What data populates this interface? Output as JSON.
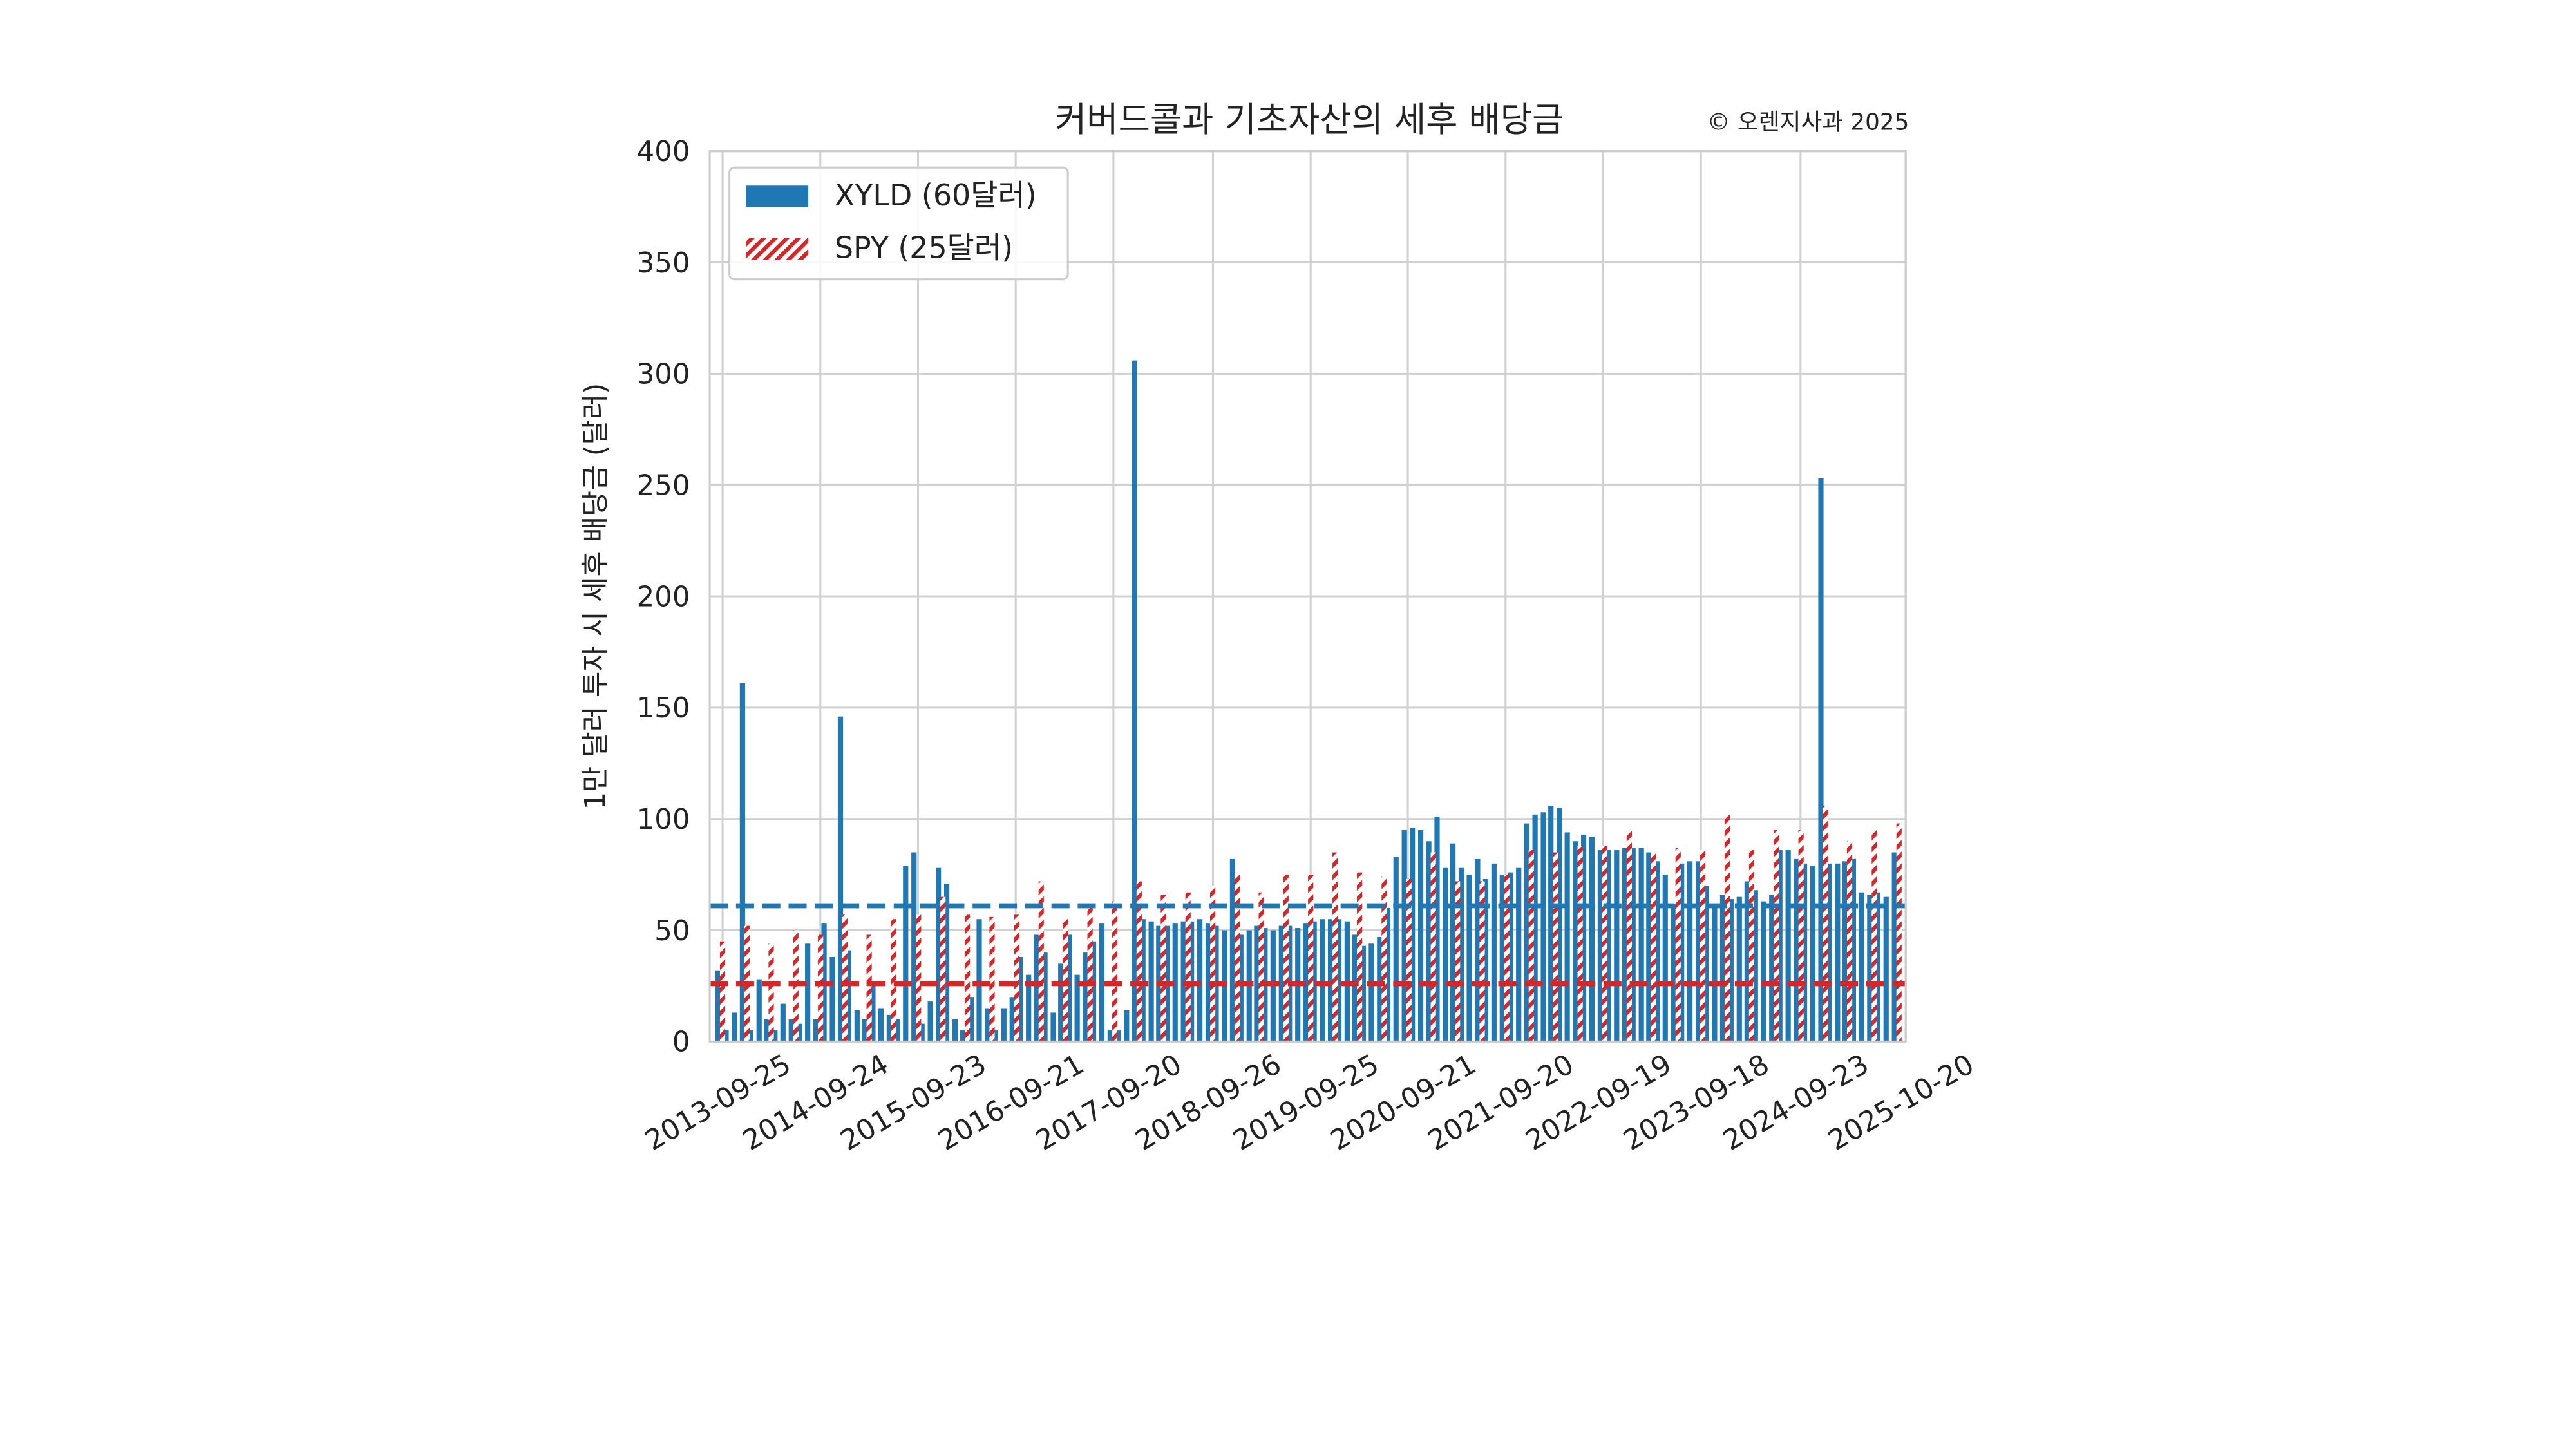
{
  "chart_data": {
    "type": "bar",
    "title": "커버드콜과 기초자산의 세후 배당금",
    "annotation": "© 오렌지사과 2025",
    "ylabel": "1만 달러 투자 시 세후 배당금 (달러)",
    "xlim": [
      "2013-08-08",
      "2025-10-20"
    ],
    "xticks": [
      "2013-09-25",
      "2014-09-24",
      "2015-09-23",
      "2016-09-21",
      "2017-09-20",
      "2018-09-26",
      "2019-09-25",
      "2020-09-21",
      "2021-09-20",
      "2022-09-19",
      "2023-09-18",
      "2024-09-23",
      "2025-10-20"
    ],
    "ylim": [
      0,
      400
    ],
    "yticks": [
      0,
      50,
      100,
      150,
      200,
      250,
      300,
      350,
      400
    ],
    "grid": true,
    "legend": "upper left",
    "series": [
      {
        "name": "XYLD (60달러)",
        "color": "#1f77b4",
        "mean": 61,
        "x": [
          "2013-09-08",
          "2013-10-08",
          "2013-11-08",
          "2013-12-08",
          "2014-01-08",
          "2014-02-08",
          "2014-03-08",
          "2014-04-08",
          "2014-05-08",
          "2014-06-08",
          "2014-07-08",
          "2014-08-08",
          "2014-09-08",
          "2014-10-08",
          "2014-11-08",
          "2014-12-08",
          "2015-01-08",
          "2015-02-08",
          "2015-03-08",
          "2015-04-08",
          "2015-05-08",
          "2015-06-08",
          "2015-07-08",
          "2015-08-08",
          "2015-09-08",
          "2015-10-08",
          "2015-11-08",
          "2015-12-08",
          "2016-01-08",
          "2016-02-08",
          "2016-03-08",
          "2016-04-08",
          "2016-05-08",
          "2016-06-08",
          "2016-07-08",
          "2016-08-08",
          "2016-09-08",
          "2016-10-08",
          "2016-11-08",
          "2016-12-08",
          "2017-01-08",
          "2017-02-08",
          "2017-03-08",
          "2017-04-08",
          "2017-05-08",
          "2017-06-08",
          "2017-07-08",
          "2017-08-08",
          "2017-09-08",
          "2017-10-08",
          "2017-11-08",
          "2017-12-08",
          "2018-01-08",
          "2018-02-08",
          "2018-03-08",
          "2018-04-08",
          "2018-05-08",
          "2018-06-08",
          "2018-07-08",
          "2018-08-08",
          "2018-09-08",
          "2018-10-08",
          "2018-11-08",
          "2018-12-08",
          "2019-01-08",
          "2019-02-08",
          "2019-03-08",
          "2019-04-08",
          "2019-05-08",
          "2019-06-08",
          "2019-07-08",
          "2019-08-08",
          "2019-09-08",
          "2019-10-08",
          "2019-11-08",
          "2019-12-08",
          "2020-01-08",
          "2020-02-08",
          "2020-03-08",
          "2020-04-08",
          "2020-05-08",
          "2020-06-08",
          "2020-07-08",
          "2020-08-08",
          "2020-09-08",
          "2020-10-08",
          "2020-11-08",
          "2020-12-08",
          "2021-01-08",
          "2021-02-08",
          "2021-03-08",
          "2021-04-08",
          "2021-05-08",
          "2021-06-08",
          "2021-07-08",
          "2021-08-08",
          "2021-09-08",
          "2021-10-08",
          "2021-11-08",
          "2021-12-08",
          "2022-01-08",
          "2022-02-08",
          "2022-03-08",
          "2022-04-08",
          "2022-05-08",
          "2022-06-08",
          "2022-07-08",
          "2022-08-08",
          "2022-09-08",
          "2022-10-08",
          "2022-11-08",
          "2022-12-08",
          "2023-01-08",
          "2023-02-08",
          "2023-03-08",
          "2023-04-08",
          "2023-05-08",
          "2023-06-08",
          "2023-07-08",
          "2023-08-08",
          "2023-09-08",
          "2023-10-08",
          "2023-11-08",
          "2023-12-08",
          "2024-01-08",
          "2024-02-08",
          "2024-03-08",
          "2024-04-08",
          "2024-05-08",
          "2024-06-08",
          "2024-07-08",
          "2024-08-08",
          "2024-09-08",
          "2024-10-08",
          "2024-11-08",
          "2024-12-08",
          "2025-01-08",
          "2025-02-08",
          "2025-03-08",
          "2025-04-08",
          "2025-05-08",
          "2025-06-08",
          "2025-07-08",
          "2025-08-08",
          "2025-09-08"
        ],
        "values": [
          32,
          5,
          13,
          161,
          5,
          28,
          10,
          5,
          17,
          10,
          8,
          44,
          10,
          53,
          38,
          146,
          41,
          14,
          10,
          25,
          15,
          12,
          10,
          79,
          85,
          8,
          18,
          78,
          71,
          10,
          5,
          20,
          55,
          15,
          5,
          15,
          20,
          38,
          30,
          48,
          40,
          13,
          35,
          48,
          30,
          40,
          45,
          53,
          5,
          5,
          14,
          306,
          55,
          54,
          52,
          52,
          53,
          54,
          54,
          55,
          53,
          52,
          50,
          82,
          48,
          50,
          52,
          51,
          50,
          52,
          52,
          51,
          53,
          54,
          55,
          55,
          55,
          54,
          48,
          43,
          44,
          47,
          60,
          83,
          95,
          96,
          95,
          90,
          101,
          78,
          89,
          78,
          75,
          82,
          73,
          80,
          75,
          76,
          78,
          98,
          102,
          103,
          106,
          105,
          94,
          90,
          93,
          92,
          86,
          86,
          86,
          87,
          87,
          87,
          85,
          81,
          75,
          62,
          80,
          81,
          81,
          70,
          62,
          66,
          64,
          65,
          72,
          68,
          63,
          66,
          86,
          86,
          82,
          80,
          79,
          253,
          80,
          80,
          81,
          82,
          67,
          66,
          67,
          65,
          85
        ]
      },
      {
        "name": "SPY (25달러)",
        "color": "#d62728",
        "hatch": "////",
        "mean": 26,
        "x": [
          "2013-09-25",
          "2013-12-25",
          "2014-03-25",
          "2014-06-25",
          "2014-09-25",
          "2014-12-25",
          "2015-03-25",
          "2015-06-25",
          "2015-09-25",
          "2015-12-25",
          "2016-03-25",
          "2016-06-25",
          "2016-09-25",
          "2016-12-25",
          "2017-03-25",
          "2017-06-25",
          "2017-09-25",
          "2017-12-25",
          "2018-03-25",
          "2018-06-25",
          "2018-09-25",
          "2018-12-25",
          "2019-03-25",
          "2019-06-25",
          "2019-09-25",
          "2019-12-25",
          "2020-03-25",
          "2020-06-25",
          "2020-09-25",
          "2020-12-25",
          "2021-03-25",
          "2021-06-25",
          "2021-09-25",
          "2021-12-25",
          "2022-03-25",
          "2022-06-25",
          "2022-09-25",
          "2022-12-25",
          "2023-03-25",
          "2023-06-25",
          "2023-09-25",
          "2023-12-25",
          "2024-03-25",
          "2024-06-25",
          "2024-09-25",
          "2024-12-25",
          "2025-03-25",
          "2025-06-25",
          "2025-09-25"
        ],
        "values": [
          45,
          52,
          44,
          50,
          48,
          57,
          48,
          55,
          57,
          65,
          57,
          56,
          57,
          72,
          55,
          62,
          63,
          72,
          66,
          67,
          70,
          75,
          67,
          75,
          75,
          85,
          76,
          74,
          73,
          85,
          72,
          72,
          75,
          86,
          85,
          88,
          88,
          95,
          85,
          87,
          86,
          102,
          86,
          95,
          95,
          106,
          90,
          95,
          98
        ]
      }
    ]
  }
}
